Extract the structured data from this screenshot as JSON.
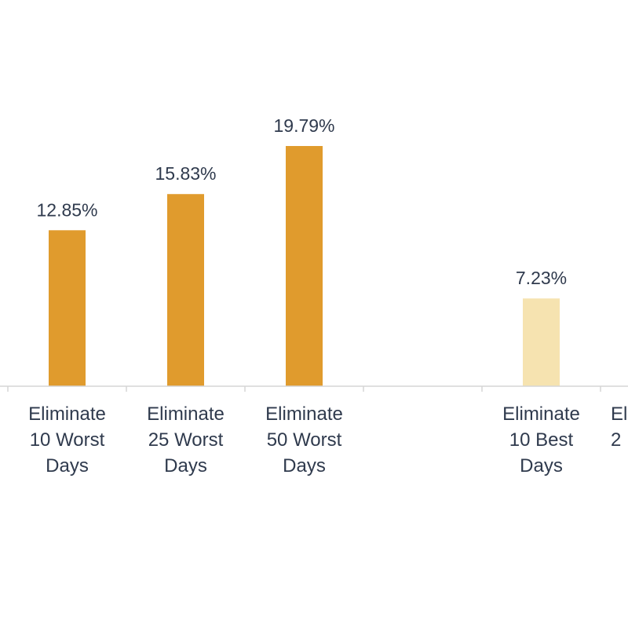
{
  "chart_data": {
    "type": "bar",
    "categories": [
      [
        "Eliminate",
        "10 Worst",
        "Days"
      ],
      [
        "Eliminate",
        "25 Worst",
        "Days"
      ],
      [
        "Eliminate",
        "50 Worst",
        "Days"
      ],
      [
        "",
        "",
        ""
      ],
      [
        "Eliminate",
        "10 Best",
        "Days"
      ],
      [
        "Eli",
        "2",
        ""
      ]
    ],
    "values": [
      12.85,
      15.83,
      19.79,
      null,
      7.23,
      null
    ],
    "value_labels": [
      "12.85%",
      "15.83%",
      "19.79%",
      "",
      "7.23%",
      ""
    ],
    "colors": [
      "#e09b2d",
      "#e09b2d",
      "#e09b2d",
      null,
      "#f6e3b0",
      null
    ],
    "title": "",
    "xlabel": "",
    "ylabel": "",
    "ylim": [
      0,
      25
    ],
    "grid": false,
    "axis_color": "#d6d6d6"
  }
}
